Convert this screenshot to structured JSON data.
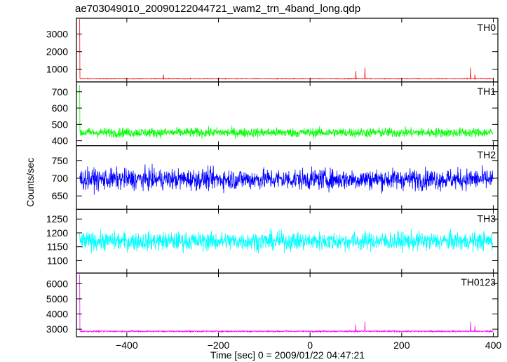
{
  "chart_data": {
    "type": "line",
    "title": "ae703049010_20090122044721_wam2_trn_4band_long.qdp",
    "xlabel": "Time [sec] 0 = 2009/01/22 04:47:21",
    "ylabel": "Counts/sec",
    "xlim": [
      -510,
      410
    ],
    "x_ticks": [
      -400,
      -200,
      0,
      200,
      400
    ],
    "grid": false,
    "panels": [
      {
        "name": "TH0",
        "color": "#ff0000",
        "ylim": [
          280,
          3900
        ],
        "y_ticks": [
          1000,
          2000,
          3000
        ],
        "baseline": 470,
        "noise": 20,
        "spikes": [
          [
            -503,
            3850
          ],
          [
            -320,
            700
          ],
          [
            100,
            900
          ],
          [
            120,
            1100
          ],
          [
            350,
            1100
          ],
          [
            360,
            700
          ]
        ]
      },
      {
        "name": "TH1",
        "color": "#00ff00",
        "ylim": [
          370,
          760
        ],
        "y_ticks": [
          400,
          500,
          600,
          700
        ],
        "baseline": 450,
        "noise": 28,
        "spikes": [
          [
            -503,
            740
          ]
        ]
      },
      {
        "name": "TH2",
        "color": "#0000ff",
        "ylim": [
          612,
          792
        ],
        "y_ticks": [
          650,
          700,
          750
        ],
        "baseline": 697,
        "noise": 28,
        "spikes": []
      },
      {
        "name": "TH3",
        "color": "#00ffff",
        "ylim": [
          1055,
          1285
        ],
        "y_ticks": [
          1100,
          1150,
          1200,
          1250
        ],
        "baseline": 1170,
        "noise": 32,
        "spikes": []
      },
      {
        "name": "TH0123",
        "color": "#ff00ff",
        "ylim": [
          2500,
          6700
        ],
        "y_ticks": [
          3000,
          4000,
          5000,
          6000
        ],
        "baseline": 2860,
        "noise": 45,
        "spikes": [
          [
            -503,
            6600
          ],
          [
            100,
            3300
          ],
          [
            120,
            3500
          ],
          [
            350,
            3500
          ],
          [
            360,
            3200
          ]
        ]
      }
    ]
  }
}
